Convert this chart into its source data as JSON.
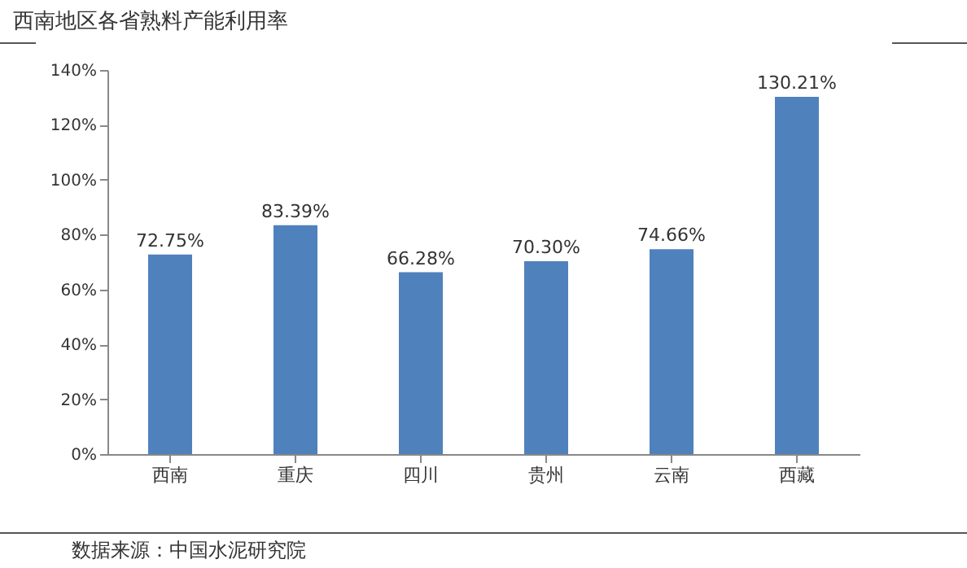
{
  "chart_data": {
    "type": "bar",
    "title": "西南地区各省熟料产能利用率",
    "categories": [
      "西南",
      "重庆",
      "四川",
      "贵州",
      "云南",
      "西藏"
    ],
    "values": [
      72.75,
      83.39,
      66.28,
      70.3,
      74.66,
      130.21
    ],
    "value_labels": [
      "72.75%",
      "83.39%",
      "66.28%",
      "70.30%",
      "74.66%",
      "130.21%"
    ],
    "color": "#4f81bd",
    "ylim": [
      0,
      140
    ],
    "yticks": [
      {
        "value": 0,
        "label": "0%"
      },
      {
        "value": 20,
        "label": "20%"
      },
      {
        "value": 40,
        "label": "40%"
      },
      {
        "value": 60,
        "label": "60%"
      },
      {
        "value": 80,
        "label": "80%"
      },
      {
        "value": 100,
        "label": "100%"
      },
      {
        "value": 120,
        "label": "120%"
      },
      {
        "value": 140,
        "label": "140%"
      }
    ],
    "grid": false,
    "annotations": [
      "数据来源：中国水泥研究院"
    ]
  }
}
